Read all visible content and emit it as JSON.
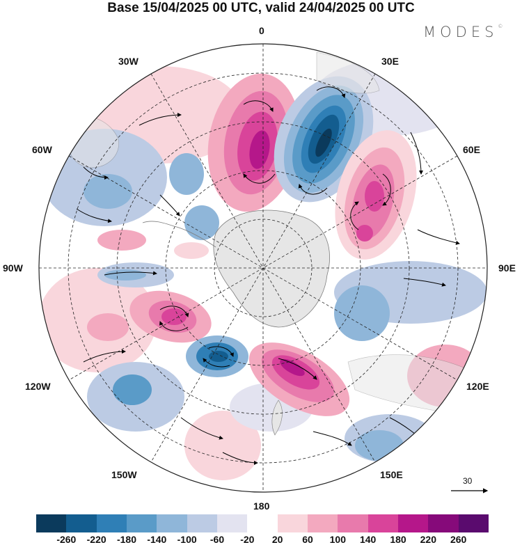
{
  "title": "Base 15/04/2025 00 UTC, valid 24/04/2025 00 UTC",
  "brand": "MODES",
  "brand_mark": "©",
  "longitude_labels": {
    "lon_0": "0",
    "lon_30e": "30E",
    "lon_60e": "60E",
    "lon_90e": "90E",
    "lon_120e": "120E",
    "lon_150e": "150E",
    "lon_180": "180",
    "lon_150w": "150W",
    "lon_120w": "120W",
    "lon_90w": "90W",
    "lon_60w": "60W",
    "lon_30w": "30W"
  },
  "vector_scale_label": "30",
  "colorbar": {
    "ticks": [
      "-260",
      "-220",
      "-180",
      "-140",
      "-100",
      "-60",
      "-20",
      "20",
      "60",
      "100",
      "140",
      "180",
      "220",
      "260"
    ],
    "colors": [
      "#0b3a5c",
      "#135d8f",
      "#2f7fb6",
      "#5a9bc8",
      "#8fb6d9",
      "#bccbe4",
      "#e3e3f0",
      "#ffffff",
      "#f9d6dc",
      "#f3a9bf",
      "#e87aac",
      "#d9449a",
      "#b5178a",
      "#860a7a",
      "#5a0b6e"
    ]
  },
  "colors": {
    "land": "#e6e6e6",
    "coast": "#7d7d7d",
    "grid": "#222222",
    "arrow": "#000000"
  }
}
